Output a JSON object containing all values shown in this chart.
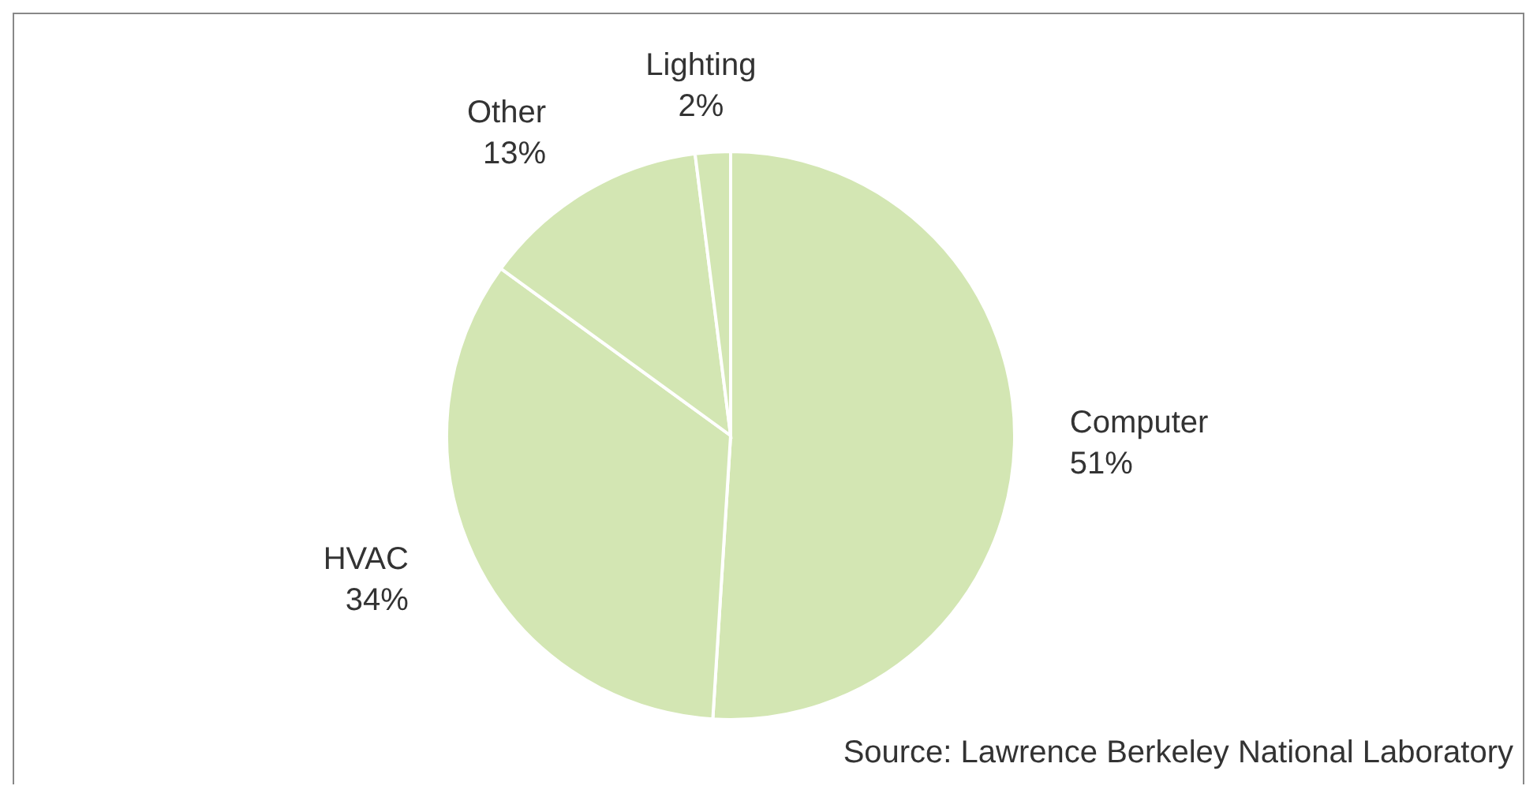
{
  "chart_data": {
    "type": "pie",
    "categories": [
      "Computer",
      "HVAC",
      "Other",
      "Lighting"
    ],
    "values": [
      51,
      34,
      13,
      2
    ],
    "value_labels": [
      "51%",
      "34%",
      "13%",
      "2%"
    ],
    "colors": [
      "#d3e6b3",
      "#d3e6b3",
      "#d3e6b3",
      "#d3e6b3"
    ],
    "annotations": [
      "Source: Lawrence Berkeley National Laboratory"
    ]
  }
}
